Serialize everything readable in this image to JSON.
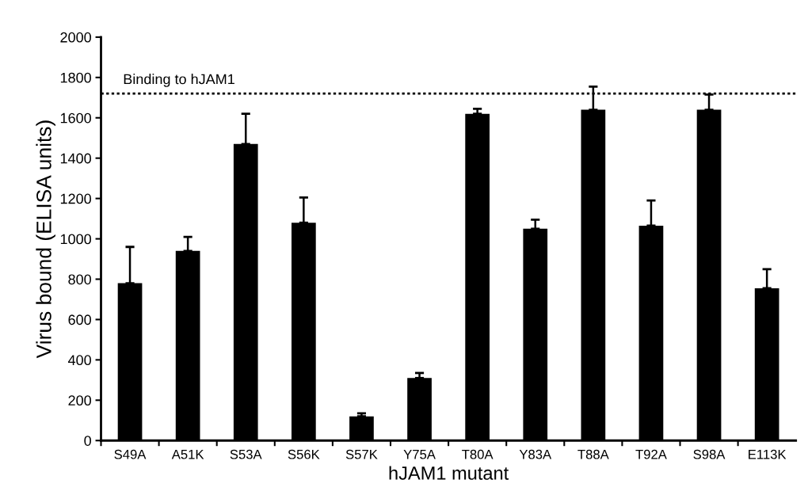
{
  "chart_data": {
    "type": "bar",
    "xlabel": "hJAM1 mutant",
    "ylabel": "Virus bound (ELISA units)",
    "categories": [
      "S49A",
      "A51K",
      "S53A",
      "S56K",
      "S57K",
      "Y75A",
      "T80A",
      "Y83A",
      "T88A",
      "T92A",
      "S98A",
      "E113K"
    ],
    "values": [
      780,
      940,
      1470,
      1080,
      120,
      310,
      1620,
      1050,
      1640,
      1065,
      1640,
      755
    ],
    "errors": [
      [
        780,
        960
      ],
      [
        940,
        1010
      ],
      [
        1470,
        1620
      ],
      [
        1080,
        1205
      ],
      [
        120,
        135
      ],
      [
        310,
        335
      ],
      [
        1620,
        1645
      ],
      [
        1050,
        1095
      ],
      [
        1640,
        1755
      ],
      [
        1065,
        1190
      ],
      [
        1640,
        1715
      ],
      [
        755,
        850
      ]
    ],
    "color": "#000000",
    "ylim": [
      0,
      2000
    ],
    "yticks": [
      0,
      200,
      400,
      600,
      800,
      1000,
      1200,
      1400,
      1600,
      1800,
      2000
    ],
    "ref_lines": [
      {
        "axis": "y",
        "value": 1720,
        "label": "Binding to hJAM1",
        "color": "#000000",
        "line_style": "dotted"
      }
    ],
    "grid": false,
    "legend": false
  }
}
